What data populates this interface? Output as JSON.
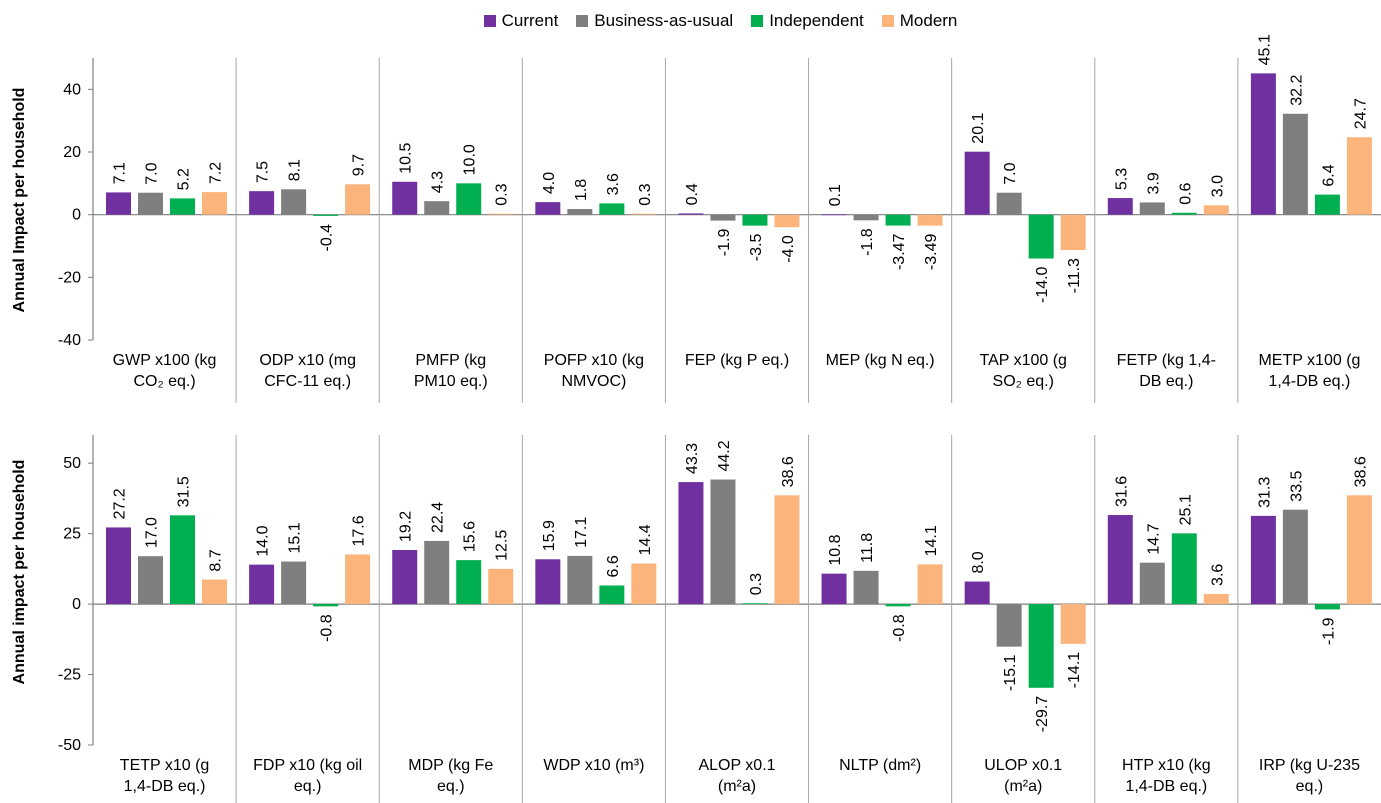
{
  "legend": {
    "series": [
      {
        "name": "Current",
        "color": "#7030a0"
      },
      {
        "name": "Business-as-usual",
        "color": "#7f7f7f"
      },
      {
        "name": "Independent",
        "color": "#00b050"
      },
      {
        "name": "Modern",
        "color": "#fab47c"
      }
    ]
  },
  "chart_data": [
    {
      "type": "bar",
      "ylabel": "Annual Impact per household",
      "ylim": [
        -40,
        50
      ],
      "yticks": [
        -40,
        -20,
        0,
        20,
        40
      ],
      "yticklabels": [
        "-40",
        "-20",
        "0",
        "20",
        "40"
      ],
      "categories": [
        [
          "GWP x100 (kg",
          "CO₂ eq.)"
        ],
        [
          "ODP x10 (mg",
          "CFC-11 eq.)"
        ],
        [
          "PMFP (kg",
          "PM10 eq.)"
        ],
        [
          "POFP x10 (kg",
          "NMVOC)"
        ],
        [
          "FEP (kg P eq.)"
        ],
        [
          "MEP (kg N eq.)"
        ],
        [
          "TAP x100 (g",
          "SO₂ eq.)"
        ],
        [
          "FETP (kg 1,4-",
          "DB eq.)"
        ],
        [
          "METP x100 (g",
          "1,4-DB eq.)"
        ]
      ],
      "series": [
        {
          "name": "Current",
          "values": [
            7.1,
            7.5,
            10.5,
            4.0,
            0.4,
            0.1,
            20.1,
            5.3,
            45.1
          ],
          "labels": [
            "7.1",
            "7.5",
            "10.5",
            "4.0",
            "0.4",
            "0.1",
            "20.1",
            "5.3",
            "45.1"
          ]
        },
        {
          "name": "Business-as-usual",
          "values": [
            7.0,
            8.1,
            4.3,
            1.8,
            -1.9,
            -1.8,
            7.0,
            3.9,
            32.2
          ],
          "labels": [
            "7.0",
            "8.1",
            "4.3",
            "1.8",
            "-1.9",
            "-1.8",
            "7.0",
            "3.9",
            "32.2"
          ]
        },
        {
          "name": "Independent",
          "values": [
            5.2,
            -0.4,
            10.0,
            3.6,
            -3.5,
            -3.47,
            -14.0,
            0.6,
            6.4
          ],
          "labels": [
            "5.2",
            "-0.4",
            "10.0",
            "3.6",
            "-3.5",
            "-3.47",
            "-14.0",
            "0.6",
            "6.4"
          ]
        },
        {
          "name": "Modern",
          "values": [
            7.2,
            9.7,
            0.3,
            0.3,
            -4.0,
            -3.49,
            -11.3,
            3.0,
            24.7
          ],
          "labels": [
            "7.2",
            "9.7",
            "0.3",
            "0.3",
            "-4.0",
            "-3.49",
            "-11.3",
            "3.0",
            "24.7"
          ]
        }
      ]
    },
    {
      "type": "bar",
      "ylabel": "Annual impact per household",
      "ylim": [
        -50,
        60
      ],
      "yticks": [
        -50,
        -25,
        0,
        25,
        50
      ],
      "yticklabels": [
        "-50",
        "-25",
        "0",
        "25",
        "50"
      ],
      "categories": [
        [
          "TETP x10 (g",
          "1,4-DB eq.)"
        ],
        [
          "FDP x10 (kg oil",
          "eq.)"
        ],
        [
          "MDP (kg Fe",
          "eq.)"
        ],
        [
          "WDP x10 (m³)"
        ],
        [
          "ALOP x0.1",
          "(m²a)"
        ],
        [
          "NLTP (dm²)"
        ],
        [
          "ULOP x0.1",
          "(m²a)"
        ],
        [
          "HTP x10 (kg",
          "1,4-DB eq.)"
        ],
        [
          "IRP (kg U-235",
          "eq.)"
        ]
      ],
      "series": [
        {
          "name": "Current",
          "values": [
            27.2,
            14.0,
            19.2,
            15.9,
            43.3,
            10.8,
            8.0,
            31.6,
            31.3
          ],
          "labels": [
            "27.2",
            "14.0",
            "19.2",
            "15.9",
            "43.3",
            "10.8",
            "8.0",
            "31.6",
            "31.3"
          ]
        },
        {
          "name": "Business-as-usual",
          "values": [
            17.0,
            15.1,
            22.4,
            17.1,
            44.2,
            11.8,
            -15.1,
            14.7,
            33.5
          ],
          "labels": [
            "17.0",
            "15.1",
            "22.4",
            "17.1",
            "44.2",
            "11.8",
            "-15.1",
            "14.7",
            "33.5"
          ]
        },
        {
          "name": "Independent",
          "values": [
            31.5,
            -0.8,
            15.6,
            6.6,
            0.3,
            -0.8,
            -29.7,
            25.1,
            -1.9
          ],
          "labels": [
            "31.5",
            "-0.8",
            "15.6",
            "6.6",
            "0.3",
            "-0.8",
            "-29.7",
            "25.1",
            "-1.9"
          ]
        },
        {
          "name": "Modern",
          "values": [
            8.7,
            17.6,
            12.5,
            14.4,
            38.6,
            14.1,
            -14.1,
            3.6,
            38.6
          ],
          "labels": [
            "8.7",
            "17.6",
            "12.5",
            "14.4",
            "38.6",
            "14.1",
            "-14.1",
            "3.6",
            "38.6"
          ]
        }
      ]
    }
  ]
}
